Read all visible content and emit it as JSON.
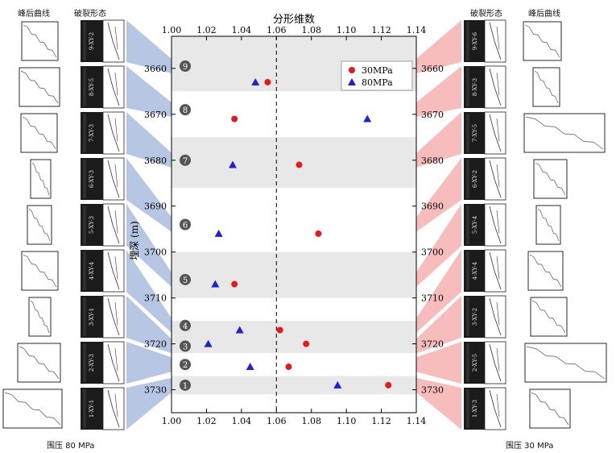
{
  "headers": {
    "curve_left": "峰后曲线",
    "fracture_left": "破裂形态",
    "fracture_right": "破裂形态",
    "curve_right": "峰后曲线"
  },
  "captions": {
    "left": "围压 80 MPa",
    "right": "围压 30 MPa"
  },
  "colors": {
    "series_30": "#e41a1c",
    "series_80": "#1f1fd6",
    "band": "#e8e8e8",
    "left_fan": "#9fb3d9",
    "right_fan": "#f4a7a7",
    "marker_circle": "#555555"
  },
  "chart_data": {
    "type": "scatter",
    "title": "分形维数",
    "ylabel": "埋深 (m)",
    "xlabel": "",
    "xlim": [
      1.0,
      1.14
    ],
    "ylim": [
      3653,
      3735
    ],
    "y_inverted": true,
    "x_ticks": [
      "1.00",
      "1.02",
      "1.04",
      "1.06",
      "1.08",
      "1.10",
      "1.12",
      "1.14"
    ],
    "y_ticks": [
      "3660",
      "3670",
      "3680",
      "3690",
      "3700",
      "3710",
      "3720",
      "3730"
    ],
    "reference_line_x": 1.06,
    "legend_position": "top-right",
    "series": [
      {
        "name": "30MPa",
        "marker": "circle",
        "points": [
          [
            1.055,
            3663
          ],
          [
            1.036,
            3671
          ],
          [
            1.073,
            3681
          ],
          [
            1.084,
            3696
          ],
          [
            1.036,
            3707
          ],
          [
            1.062,
            3717
          ],
          [
            1.077,
            3720
          ],
          [
            1.067,
            3725
          ],
          [
            1.124,
            3729
          ]
        ]
      },
      {
        "name": "80MPa",
        "marker": "triangle",
        "points": [
          [
            1.048,
            3663
          ],
          [
            1.112,
            3671
          ],
          [
            1.035,
            3681
          ],
          [
            1.027,
            3696
          ],
          [
            1.025,
            3707
          ],
          [
            1.039,
            3717
          ],
          [
            1.021,
            3720
          ],
          [
            1.045,
            3725
          ],
          [
            1.095,
            3729
          ]
        ]
      }
    ],
    "bands": [
      [
        3653,
        3665
      ],
      [
        3675,
        3686
      ],
      [
        3700,
        3710
      ],
      [
        3715,
        3722
      ],
      [
        3727,
        3731
      ]
    ],
    "numbered_markers": [
      {
        "label": "9",
        "depth": 3659.5
      },
      {
        "label": "8",
        "depth": 3669
      },
      {
        "label": "7",
        "depth": 3680
      },
      {
        "label": "6",
        "depth": 3694
      },
      {
        "label": "5",
        "depth": 3706
      },
      {
        "label": "4",
        "depth": 3716
      },
      {
        "label": "3",
        "depth": 3720.5
      },
      {
        "label": "2",
        "depth": 3724.5
      },
      {
        "label": "1",
        "depth": 3729
      }
    ]
  },
  "samples_left": [
    {
      "label": "9-XY-2"
    },
    {
      "label": "8-XY-5"
    },
    {
      "label": "7-XY-3"
    },
    {
      "label": "6-XY-3"
    },
    {
      "label": "5-XY-3"
    },
    {
      "label": "4-XY-4"
    },
    {
      "label": "3-XY-1"
    },
    {
      "label": "2-XY-3"
    },
    {
      "label": "1-XY-1"
    }
  ],
  "samples_right": [
    {
      "label": "9-XY-6"
    },
    {
      "label": "8-XY-3"
    },
    {
      "label": "7-XY-5"
    },
    {
      "label": "6-XY-2"
    },
    {
      "label": "5-XY-4"
    },
    {
      "label": "4-XY-4"
    },
    {
      "label": "3-XY-2"
    },
    {
      "label": "2-XY-5"
    },
    {
      "label": "1-XY-3"
    }
  ]
}
